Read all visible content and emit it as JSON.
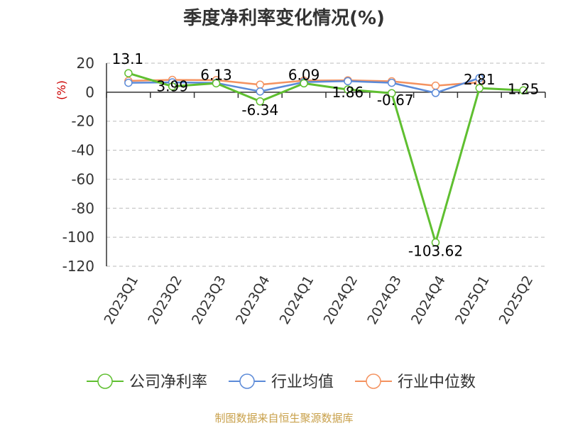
{
  "chart_data": {
    "type": "line",
    "title": "季度净利率变化情况(%)",
    "ylabel": "(%)",
    "xlabel": "",
    "categories": [
      "2023Q1",
      "2023Q2",
      "2023Q3",
      "2023Q4",
      "2024Q1",
      "2024Q2",
      "2024Q3",
      "2024Q4",
      "2025Q1",
      "2025Q2"
    ],
    "yticks": [
      20,
      0,
      -20,
      -40,
      -60,
      -80,
      -100,
      -120
    ],
    "ylim": [
      -120,
      20
    ],
    "grid": true,
    "legend_position": "bottom",
    "series": [
      {
        "name": "公司净利率",
        "color": "#5fbf30",
        "values": [
          13.1,
          3.99,
          6.13,
          -6.34,
          6.09,
          1.86,
          -0.67,
          -103.62,
          2.81,
          1.25
        ],
        "labels": [
          "13.1",
          "3.99",
          "6.13",
          "-6.34",
          "6.09",
          "1.86",
          "-0.67",
          "-103.62",
          "2.81",
          "1.25"
        ]
      },
      {
        "name": "行业均值",
        "color": "#5b8ad8",
        "values": [
          6.5,
          6.8,
          6.4,
          0.5,
          7.0,
          7.6,
          6.5,
          -0.5,
          9.8,
          null
        ]
      },
      {
        "name": "行业中位数",
        "color": "#f4925f",
        "values": [
          7.8,
          8.5,
          8.3,
          5.2,
          8.0,
          8.2,
          7.5,
          4.5,
          6.8,
          null
        ]
      }
    ]
  },
  "source": "制图数据来自恒生聚源数据库",
  "colors": {
    "unit_label": "#cc0000",
    "source": "#c8a04a",
    "grid": "#bbbbbb",
    "axis": "#333333"
  }
}
